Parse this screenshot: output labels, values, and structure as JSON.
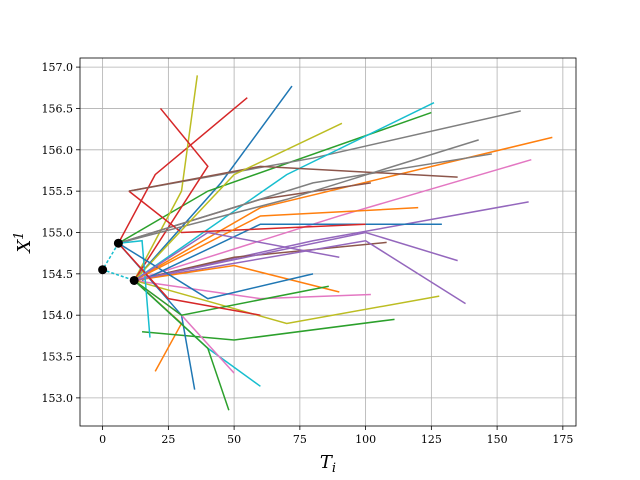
{
  "chart_data": {
    "type": "line",
    "xlabel": "T",
    "xlabel_sub": "i",
    "ylabel": "X",
    "ylabel_sup": "1",
    "xlim": [
      -8.6,
      180
    ],
    "ylim": [
      152.66,
      157.11
    ],
    "xticks": [
      0,
      25,
      50,
      75,
      100,
      125,
      150,
      175
    ],
    "yticks": [
      {
        "value": 153,
        "label": "153.0"
      },
      {
        "value": 153.5,
        "label": "153.5"
      },
      {
        "value": 154,
        "label": "154.0"
      },
      {
        "value": 154.5,
        "label": "154.5"
      },
      {
        "value": 155,
        "label": "155.0"
      },
      {
        "value": 155.5,
        "label": "155.5"
      },
      {
        "value": 156,
        "label": "156.0"
      },
      {
        "value": 156.5,
        "label": "156.5"
      },
      {
        "value": 157,
        "label": "157.0"
      }
    ],
    "grid": true,
    "series": [
      {
        "color": "#1f77b4",
        "x": [
          12,
          45,
          72
        ],
        "values": [
          154.42,
          155.6,
          156.77
        ]
      },
      {
        "color": "#ff7f0e",
        "x": [
          12,
          60,
          171
        ],
        "values": [
          154.42,
          155.3,
          156.15
        ]
      },
      {
        "color": "#2ca02c",
        "x": [
          6,
          40,
          125
        ],
        "values": [
          154.87,
          155.5,
          156.45
        ]
      },
      {
        "color": "#d62728",
        "x": [
          6,
          20,
          55
        ],
        "values": [
          154.87,
          155.7,
          156.63
        ]
      },
      {
        "color": "#9467bd",
        "x": [
          12,
          80,
          162
        ],
        "values": [
          154.42,
          154.9,
          155.37
        ]
      },
      {
        "color": "#8c564b",
        "x": [
          12,
          50,
          108
        ],
        "values": [
          154.42,
          154.7,
          154.88
        ]
      },
      {
        "color": "#e377c2",
        "x": [
          12,
          90,
          163
        ],
        "values": [
          154.42,
          155.2,
          155.88
        ]
      },
      {
        "color": "#7f7f7f",
        "x": [
          10,
          80,
          159
        ],
        "values": [
          155.5,
          155.9,
          156.47
        ]
      },
      {
        "color": "#bcbd22",
        "x": [
          12,
          30,
          36
        ],
        "values": [
          154.42,
          155.5,
          156.9
        ]
      },
      {
        "color": "#17becf",
        "x": [
          12,
          70,
          126
        ],
        "values": [
          154.42,
          155.7,
          156.57
        ]
      },
      {
        "color": "#1f77b4",
        "x": [
          15,
          60,
          129
        ],
        "values": [
          154.42,
          155.1,
          155.1
        ]
      },
      {
        "color": "#ff7f0e",
        "x": [
          12,
          30,
          20
        ],
        "values": [
          154.42,
          153.9,
          153.32
        ]
      },
      {
        "color": "#2ca02c",
        "x": [
          15,
          50,
          111
        ],
        "values": [
          153.8,
          153.7,
          153.95
        ]
      },
      {
        "color": "#d62728",
        "x": [
          12,
          40,
          22
        ],
        "values": [
          154.42,
          155.8,
          156.5
        ]
      },
      {
        "color": "#9467bd",
        "x": [
          12,
          100,
          138
        ],
        "values": [
          154.42,
          154.9,
          154.14
        ]
      },
      {
        "color": "#8c564b",
        "x": [
          6,
          60,
          102
        ],
        "values": [
          154.87,
          155.4,
          155.6
        ]
      },
      {
        "color": "#e377c2",
        "x": [
          12,
          60,
          102
        ],
        "values": [
          154.42,
          154.2,
          154.25
        ]
      },
      {
        "color": "#7f7f7f",
        "x": [
          6,
          80,
          148
        ],
        "values": [
          154.87,
          155.6,
          155.95
        ]
      },
      {
        "color": "#bcbd22",
        "x": [
          12,
          70,
          128
        ],
        "values": [
          154.42,
          153.9,
          154.23
        ]
      },
      {
        "color": "#17becf",
        "x": [
          12,
          40,
          60
        ],
        "values": [
          154.42,
          153.6,
          153.14
        ]
      },
      {
        "color": "#1f77b4",
        "x": [
          6,
          30,
          35
        ],
        "values": [
          154.87,
          154.0,
          153.1
        ]
      },
      {
        "color": "#ff7f0e",
        "x": [
          12,
          50,
          90
        ],
        "values": [
          154.42,
          154.6,
          154.28
        ]
      },
      {
        "color": "#2ca02c",
        "x": [
          12,
          40,
          48
        ],
        "values": [
          154.42,
          153.6,
          152.85
        ]
      },
      {
        "color": "#d62728",
        "x": [
          10,
          30,
          100
        ],
        "values": [
          155.5,
          155.0,
          155.1
        ]
      },
      {
        "color": "#9467bd",
        "x": [
          12,
          100,
          135
        ],
        "values": [
          154.42,
          155.0,
          154.66
        ]
      },
      {
        "color": "#8c564b",
        "x": [
          10,
          60,
          135
        ],
        "values": [
          155.5,
          155.8,
          155.67
        ]
      },
      {
        "color": "#e377c2",
        "x": [
          12,
          30,
          50
        ],
        "values": [
          154.42,
          154.0,
          153.3
        ]
      },
      {
        "color": "#7f7f7f",
        "x": [
          6,
          70,
          143
        ],
        "values": [
          154.87,
          155.4,
          156.12
        ]
      },
      {
        "color": "#bcbd22",
        "x": [
          12,
          50,
          91
        ],
        "values": [
          154.42,
          155.7,
          156.32
        ]
      },
      {
        "color": "#17becf",
        "x": [
          6,
          15,
          18
        ],
        "values": [
          154.87,
          154.9,
          153.73
        ]
      },
      {
        "color": "#1f77b4",
        "x": [
          6,
          40,
          80
        ],
        "values": [
          154.87,
          154.2,
          154.5
        ]
      },
      {
        "color": "#ff7f0e",
        "x": [
          12,
          60,
          120
        ],
        "values": [
          154.42,
          155.2,
          155.3
        ]
      },
      {
        "color": "#2ca02c",
        "x": [
          12,
          30,
          86
        ],
        "values": [
          154.42,
          154.0,
          154.35
        ]
      },
      {
        "color": "#d62728",
        "x": [
          6,
          25,
          60
        ],
        "values": [
          154.87,
          154.2,
          154.0
        ]
      },
      {
        "color": "#9467bd",
        "x": [
          12,
          40,
          90
        ],
        "values": [
          154.42,
          155.0,
          154.7
        ]
      },
      {
        "color": "#17becf",
        "dashed": true,
        "x": [
          6,
          0,
          12
        ],
        "values": [
          154.87,
          154.55,
          154.42
        ]
      }
    ],
    "points": {
      "color": "#000000",
      "x": [
        0,
        6,
        12
      ],
      "values": [
        154.55,
        154.87,
        154.42
      ]
    }
  }
}
